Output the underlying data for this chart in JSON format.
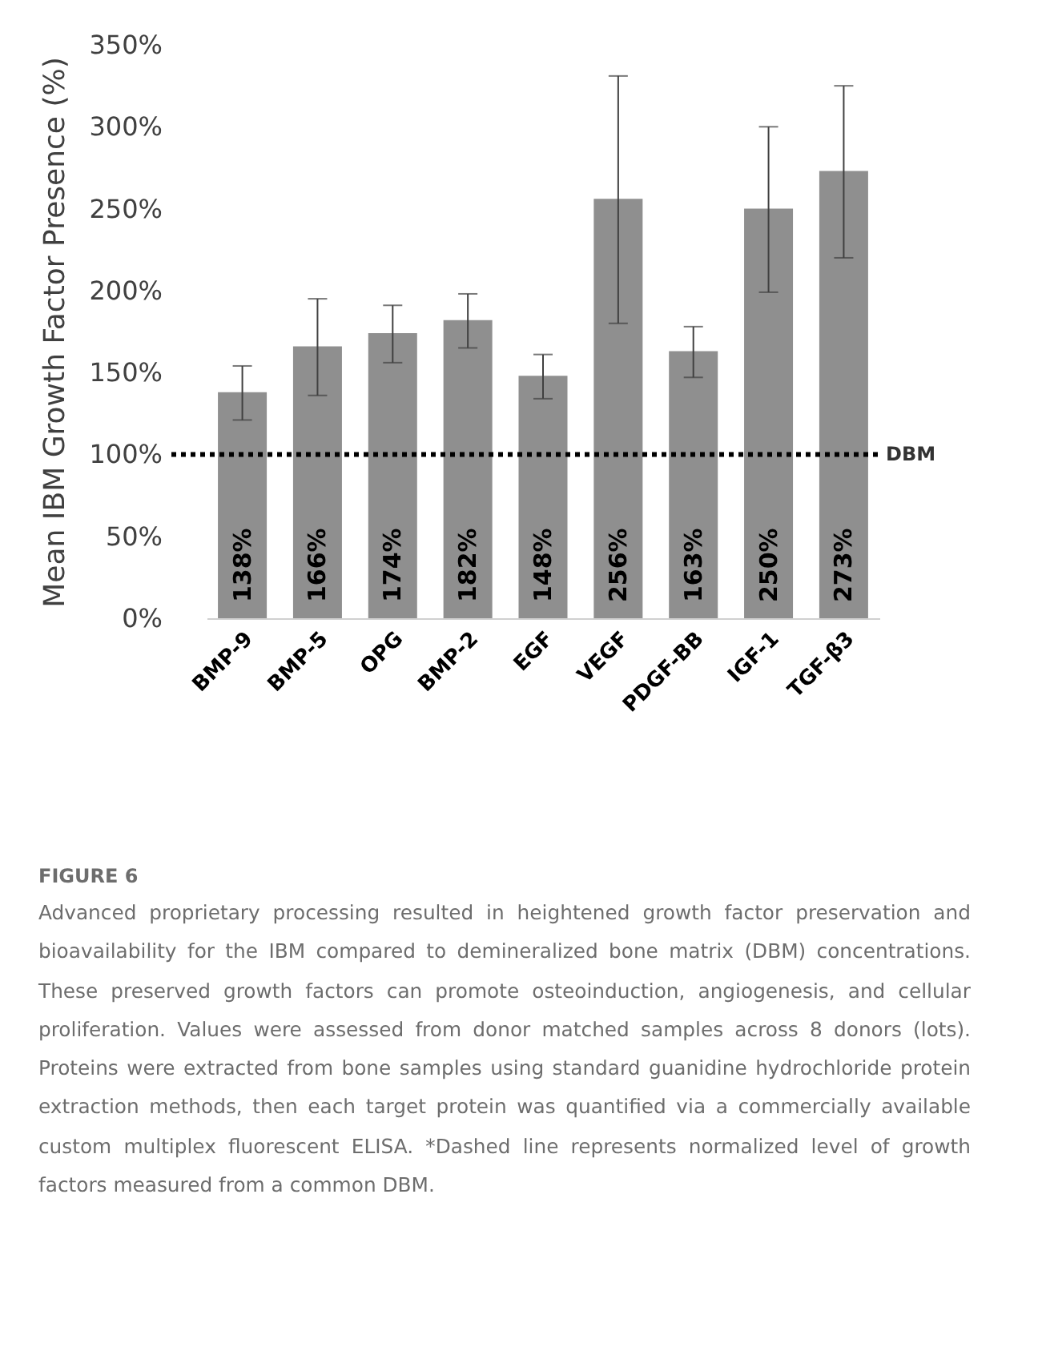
{
  "chart_data": {
    "type": "bar",
    "ylabel": "Mean IBM Growth Factor Presence (%)",
    "categories": [
      "BMP-9",
      "BMP-5",
      "OPG",
      "BMP-2",
      "EGF",
      "VEGF",
      "PDGF-BB",
      "IGF-1",
      "TGF-β3"
    ],
    "values": [
      138,
      166,
      174,
      182,
      148,
      256,
      163,
      250,
      273
    ],
    "value_labels": [
      "138%",
      "166%",
      "174%",
      "182%",
      "148%",
      "256%",
      "163%",
      "250%",
      "273%"
    ],
    "errors": [
      [
        121,
        154
      ],
      [
        136,
        195
      ],
      [
        156,
        191
      ],
      [
        165,
        198
      ],
      [
        134,
        161
      ],
      [
        180,
        331
      ],
      [
        147,
        178
      ],
      [
        199,
        300
      ],
      [
        220,
        325
      ]
    ],
    "color": "#8f8f8f",
    "ylim": [
      0,
      350
    ],
    "yticks": [
      {
        "value": 0,
        "label": "0%"
      },
      {
        "value": 50,
        "label": "50%"
      },
      {
        "value": 100,
        "label": "100%"
      },
      {
        "value": 150,
        "label": "150%"
      },
      {
        "value": 200,
        "label": "200%"
      },
      {
        "value": 250,
        "label": "250%"
      },
      {
        "value": 300,
        "label": "300%"
      },
      {
        "value": 350,
        "label": "350%"
      }
    ],
    "grid": false,
    "ref_lines": [
      {
        "axis": "y",
        "value": 100,
        "label": "DBM",
        "color": "#000000",
        "line_style": "dotted"
      }
    ],
    "annotations": [
      "FIGURE 6",
      "Advanced proprietary processing resulted in heightened growth factor preservation and bioavailability for the IBM compared to demineralized bone matrix (DBM) concentrations. These preserved growth factors can promote osteoinduction, angiogenesis, and cellular proliferation. Values were assessed from donor matched samples across 8 donors (lots). Proteins were extracted from bone samples using standard guanidine hydrochloride protein extraction methods, then each target protein was quantified via a commercially available custom multiplex fluorescent ELISA. *Dashed line represents normalized level of growth factors measured from a common DBM."
    ]
  }
}
